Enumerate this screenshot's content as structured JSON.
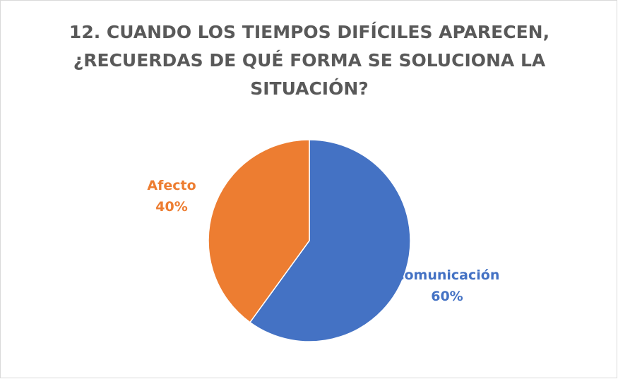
{
  "chart_data": {
    "type": "pie",
    "title": [
      "12. CUANDO LOS TIEMPOS DIFÍCILES APARECEN,",
      "¿RECUERDAS DE QUÉ FORMA SE SOLUCIONA LA",
      "SITUACIÓN?"
    ],
    "categories": [
      "Comunicación",
      "Afecto"
    ],
    "values": [
      60,
      40
    ],
    "value_labels": [
      "60%",
      "40%"
    ],
    "colors": [
      "#4472c4",
      "#ed7d31"
    ]
  }
}
